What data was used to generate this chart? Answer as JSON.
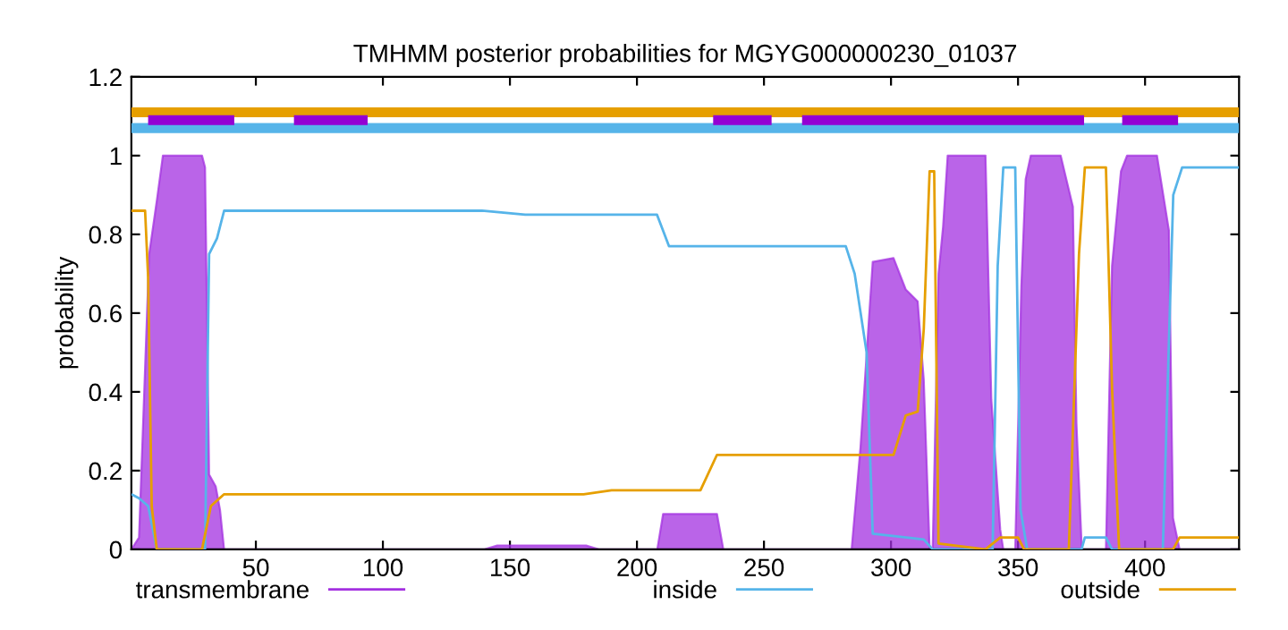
{
  "chart_data": {
    "type": "line",
    "title": "TMHMM posterior probabilities for MGYG000000230_01037",
    "ylabel": "probability",
    "xlim": [
      1,
      437
    ],
    "ylim": [
      0,
      1.2
    ],
    "xticks": [
      50,
      100,
      150,
      200,
      250,
      300,
      350,
      400
    ],
    "yticks": [
      0,
      0.2,
      0.4,
      0.6,
      0.8,
      1,
      1.2
    ],
    "grid": false,
    "legend": "bottom",
    "marker": "none",
    "line_style": "solid",
    "series": [
      {
        "name": "transmembrane",
        "type": "area",
        "color": "#a330e0",
        "x": [
          1,
          4,
          8,
          11.1,
          13.4,
          28.8,
          30,
          31.6,
          34.2,
          35.9,
          37.5,
          140,
          145,
          180,
          185,
          208,
          210.3,
          231.5,
          234,
          284.5,
          288,
          292.8,
          301,
          305.8,
          310.5,
          312.9,
          315.2,
          316.4,
          318.7,
          320.5,
          322.3,
          337.2,
          339.5,
          343,
          344.2,
          348.9,
          351.3,
          353,
          355,
          366.8,
          371.6,
          373,
          375.1,
          384.6,
          387,
          390.5,
          392.9,
          404.7,
          409.4,
          411,
          413.6,
          437
        ],
        "values": [
          0,
          0.03,
          0.75,
          0.89,
          1,
          1,
          0.97,
          0.19,
          0.16,
          0.1,
          0,
          0,
          0.01,
          0.01,
          0,
          0,
          0.09,
          0.09,
          0,
          0,
          0.26,
          0.73,
          0.74,
          0.66,
          0.63,
          0.43,
          0,
          0,
          0.7,
          0.82,
          1,
          1,
          0.38,
          0.05,
          0,
          0,
          0.67,
          0.94,
          1,
          1,
          0.87,
          0.32,
          0,
          0,
          0.72,
          0.96,
          1,
          1,
          0.81,
          0.08,
          0,
          0
        ]
      },
      {
        "name": "inside",
        "color": "#56b4e9",
        "x": [
          1,
          4,
          7.6,
          11,
          30,
          31.6,
          34.7,
          37.5,
          139,
          156,
          207.9,
          212.6,
          282.2,
          285.7,
          290.4,
          292.8,
          312.9,
          316.4,
          340,
          342,
          344.2,
          348.9,
          351,
          353.6,
          375,
          376.3,
          384.6,
          387,
          407,
          411.1,
          414.6,
          437
        ],
        "values": [
          0.14,
          0.13,
          0.11,
          0,
          0,
          0.75,
          0.79,
          0.86,
          0.86,
          0.85,
          0.85,
          0.77,
          0.77,
          0.7,
          0.5,
          0.04,
          0.025,
          0,
          0,
          0.72,
          0.97,
          0.97,
          0.1,
          0,
          0,
          0.03,
          0.03,
          0,
          0,
          0.9,
          0.97,
          0.97
        ]
      },
      {
        "name": "outside",
        "color": "#e69f00",
        "x": [
          1,
          6.4,
          7.6,
          9,
          11,
          28.8,
          32.3,
          37.5,
          179,
          190,
          225,
          231.5,
          301,
          305.8,
          310.5,
          312.9,
          315.2,
          317,
          318.7,
          337.2,
          343,
          350,
          352.4,
          370,
          374,
          376.3,
          384.6,
          387,
          389.8,
          411,
          413.6,
          437
        ],
        "values": [
          0.86,
          0.86,
          0.69,
          0.11,
          0,
          0,
          0.11,
          0.14,
          0.14,
          0.15,
          0.15,
          0.24,
          0.24,
          0.34,
          0.35,
          0.56,
          0.96,
          0.96,
          0.015,
          0,
          0.03,
          0.03,
          0,
          0,
          0.75,
          0.97,
          0.97,
          0.41,
          0,
          0,
          0.03,
          0.03
        ]
      },
      {
        "color": "#e69f00",
        "x": [
          1,
          437
        ],
        "values": [
          1.11,
          1.11
        ]
      },
      {
        "color": "#56b4e9",
        "x": [
          1,
          437
        ],
        "values": [
          1.07,
          1.07
        ]
      },
      {
        "color": "#9400d3",
        "x": [
          7.6,
          41.5
        ],
        "values": [
          1.09,
          1.09
        ]
      },
      {
        "color": "#9400d3",
        "x": [
          65,
          94
        ],
        "values": [
          1.09,
          1.09
        ]
      },
      {
        "color": "#9400d3",
        "x": [
          230,
          253
        ],
        "values": [
          1.09,
          1.09
        ]
      },
      {
        "color": "#9400d3",
        "x": [
          265,
          376
        ],
        "values": [
          1.09,
          1.09
        ]
      },
      {
        "color": "#9400d3",
        "x": [
          391,
          413
        ],
        "values": [
          1.09,
          1.09
        ]
      }
    ]
  }
}
